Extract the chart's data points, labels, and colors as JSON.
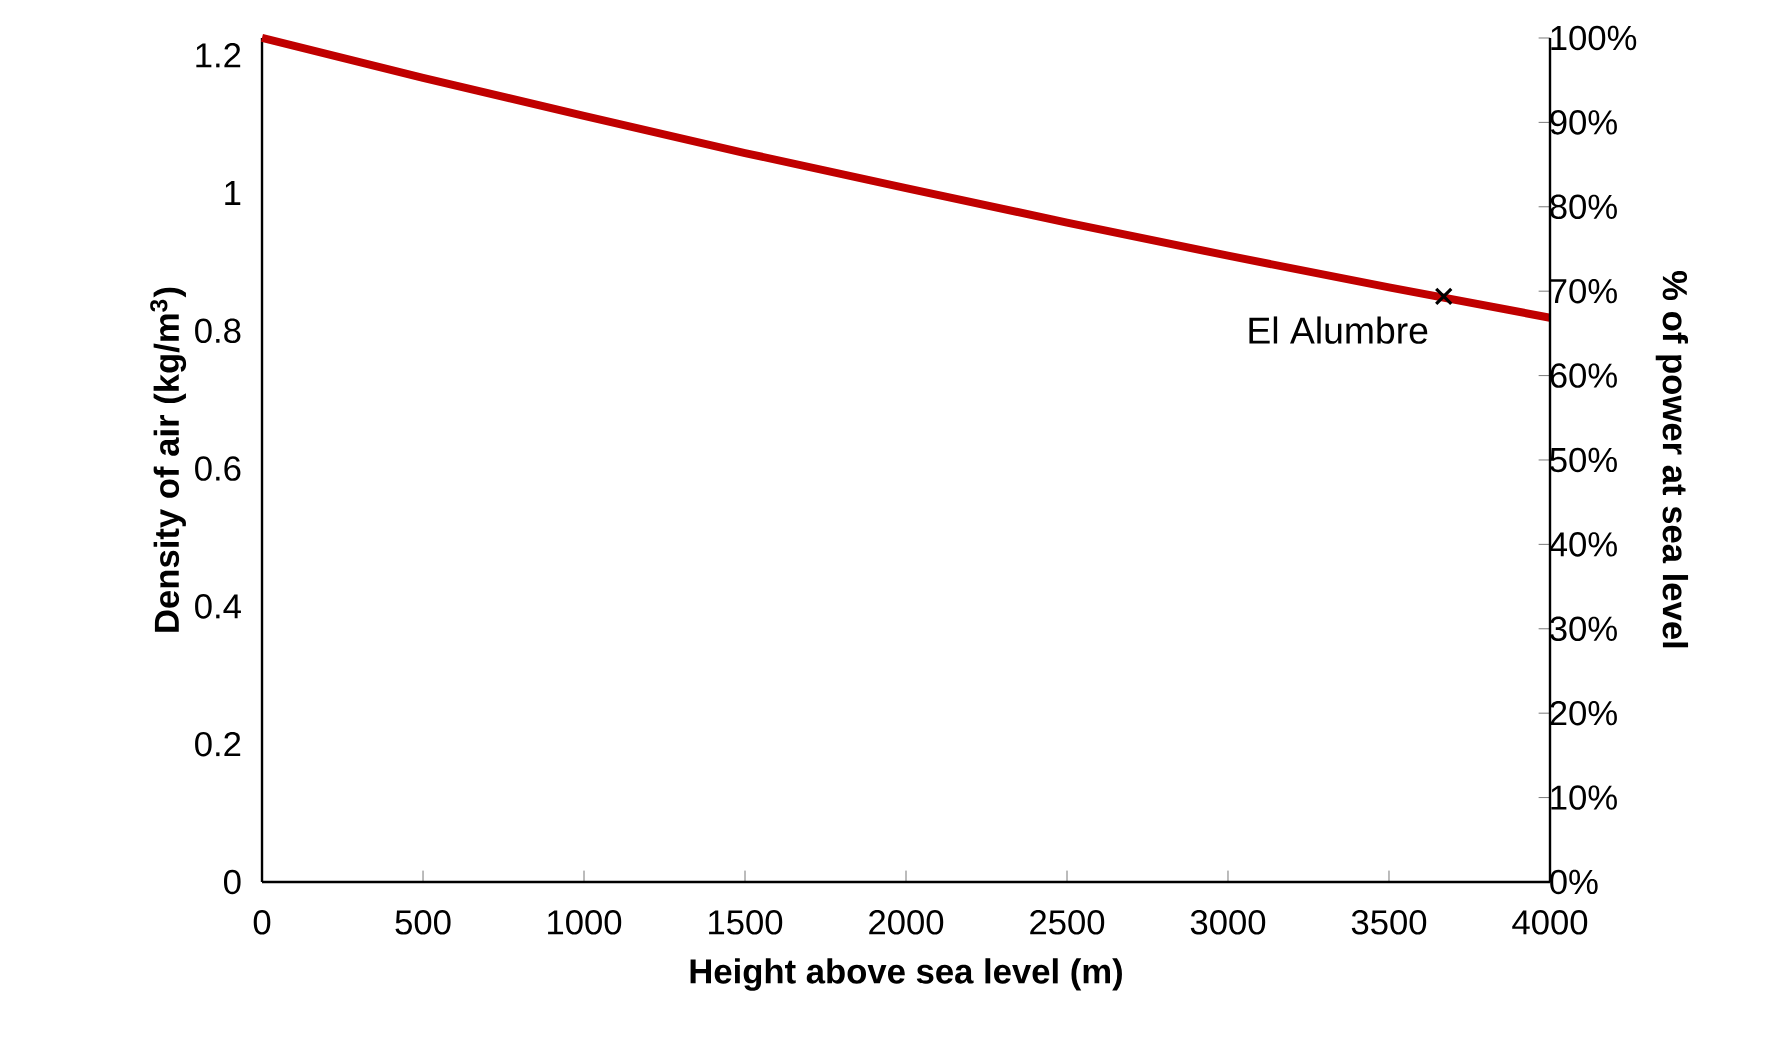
{
  "chart_data": {
    "type": "line",
    "xlabel": "Height above sea level (m)",
    "ylabel": "Density of air (kg/m$^{3}$)",
    "y2label": "% of power at sea level",
    "series": [
      {
        "color": "#c00000",
        "x": [
          0,
          500,
          1000,
          1500,
          2000,
          2500,
          3000,
          3500,
          4000
        ],
        "values": [
          1.225,
          1.167,
          1.112,
          1.058,
          1.007,
          0.957,
          0.909,
          0.863,
          0.819
        ]
      },
      {
        "type": "scatter",
        "color": "#000000",
        "marker": "cross",
        "x": [
          3670
        ],
        "values": [
          0.85
        ]
      }
    ],
    "annotations": [
      {
        "text": "El Alumbre",
        "x": 3670,
        "y": 0.85
      }
    ],
    "xlim": [
      0,
      4000
    ],
    "xticks": [
      0,
      500,
      1000,
      1500,
      2000,
      2500,
      3000,
      3500,
      4000
    ],
    "ylim": [
      0,
      1.225
    ],
    "yticks": [
      0,
      0.2,
      0.4,
      0.6,
      0.8,
      1,
      1.2
    ],
    "y2lim": [
      0,
      100
    ],
    "y2ticks": [
      {
        "value": 0,
        "label": "0%"
      },
      {
        "value": 10,
        "label": "10%"
      },
      {
        "value": 20,
        "label": "20%"
      },
      {
        "value": 30,
        "label": "30%"
      },
      {
        "value": 40,
        "label": "40%"
      },
      {
        "value": 50,
        "label": "50%"
      },
      {
        "value": 60,
        "label": "60%"
      },
      {
        "value": 70,
        "label": "70%"
      },
      {
        "value": 80,
        "label": "80%"
      },
      {
        "value": 90,
        "label": "90%"
      },
      {
        "value": 100,
        "label": "100%"
      }
    ],
    "grid": false
  }
}
